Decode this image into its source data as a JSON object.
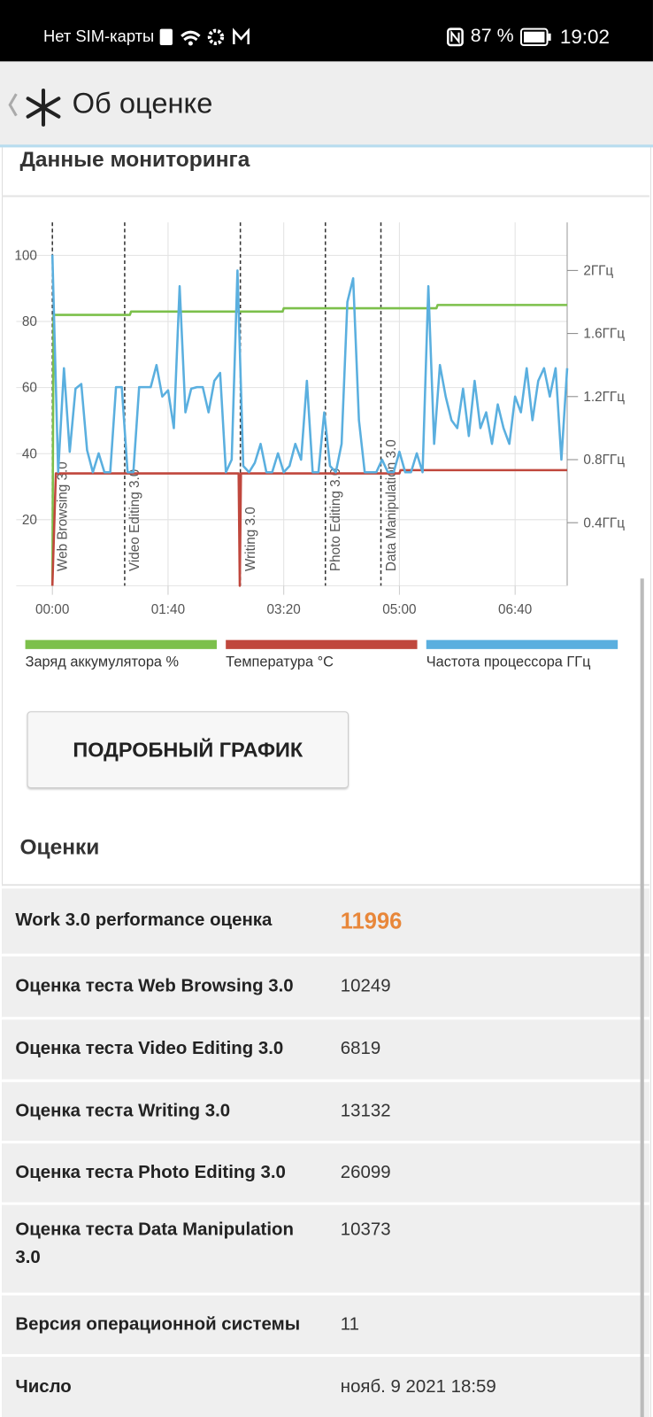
{
  "status_bar": {
    "carrier": "Нет SIM-карты",
    "battery": "87 %",
    "time": "19:02"
  },
  "header": {
    "title": "Об оценке"
  },
  "monitoring": {
    "title": "Данные мониторинга"
  },
  "chart_data": {
    "type": "line",
    "xlim": [
      0,
      445
    ],
    "xticks": [
      {
        "value": 0,
        "label": "00:00"
      },
      {
        "value": 100,
        "label": "01:40"
      },
      {
        "value": 200,
        "label": "03:20"
      },
      {
        "value": 300,
        "label": "05:00"
      },
      {
        "value": 400,
        "label": "06:40"
      }
    ],
    "ylim": [
      0,
      110
    ],
    "yticks": [
      20,
      40,
      60,
      80,
      100
    ],
    "y2lim": [
      0,
      2.305
    ],
    "y2ticks": [
      {
        "value": 0.4,
        "label": "0.4ГГц"
      },
      {
        "value": 0.8,
        "label": "0.8ГГц"
      },
      {
        "value": 1.2,
        "label": "1.2ГГц"
      },
      {
        "value": 1.6,
        "label": "1.6ГГц"
      },
      {
        "value": 2,
        "label": "2ГГц"
      }
    ],
    "grid": true,
    "markers": [
      {
        "x": 0,
        "label": "Web Browsing 3.0"
      },
      {
        "x": 62.5,
        "label": "Video Editing 3.0"
      },
      {
        "x": 162.5,
        "label": "Writing 3.0"
      },
      {
        "x": 236,
        "label": "Photo Editing 3.0"
      },
      {
        "x": 284,
        "label": "Data Manipulation 3.0"
      }
    ],
    "series": [
      {
        "name": "Заряд аккумулятора %",
        "color": "#7cc04b",
        "x": [
          0,
          1,
          67,
          68,
          199,
          200,
          332,
          333,
          445
        ],
        "values": [
          0,
          82,
          82,
          83,
          83,
          84,
          84,
          85,
          85
        ]
      },
      {
        "name": "Температура °C",
        "color": "#c0473d",
        "x": [
          0,
          3,
          161,
          162,
          163,
          300,
          301,
          445
        ],
        "values": [
          0,
          34,
          34,
          0,
          34,
          34,
          35,
          35
        ]
      },
      {
        "name": "Частота процессора ГГц",
        "color": "#5aafdf",
        "axis": "y2",
        "x": [
          0,
          5,
          10,
          15,
          20,
          25,
          30,
          35,
          40,
          45,
          50,
          55,
          60,
          65,
          70,
          75,
          80,
          85,
          90,
          95,
          100,
          105,
          110,
          115,
          120,
          125,
          130,
          135,
          140,
          145,
          150,
          155,
          160,
          165,
          170,
          175,
          180,
          185,
          190,
          195,
          200,
          205,
          210,
          215,
          220,
          225,
          230,
          235,
          240,
          245,
          250,
          255,
          260,
          265,
          270,
          275,
          280,
          285,
          290,
          295,
          300,
          305,
          310,
          315,
          320,
          325,
          330,
          335,
          340,
          345,
          350,
          355,
          360,
          365,
          370,
          375,
          380,
          385,
          390,
          395,
          400,
          405,
          410,
          415,
          420,
          425,
          430,
          435,
          440,
          445
        ],
        "values": [
          2.1,
          0.72,
          1.38,
          0.85,
          1.25,
          1.28,
          0.86,
          0.72,
          0.84,
          0.72,
          0.72,
          1.26,
          1.26,
          0.72,
          0.72,
          1.26,
          1.26,
          1.26,
          1.4,
          1.2,
          1.24,
          1.0,
          1.9,
          1.1,
          1.25,
          1.26,
          1.26,
          1.1,
          1.3,
          1.35,
          0.72,
          0.8,
          2.0,
          0.76,
          0.72,
          0.78,
          0.9,
          0.72,
          0.72,
          0.84,
          0.72,
          0.76,
          0.9,
          0.8,
          1.3,
          0.72,
          0.72,
          1.1,
          0.76,
          0.72,
          0.9,
          1.8,
          1.95,
          1.05,
          0.72,
          0.72,
          0.72,
          0.8,
          0.72,
          0.72,
          0.85,
          0.72,
          0.72,
          0.84,
          0.72,
          1.9,
          0.9,
          1.4,
          1.2,
          1.05,
          1.0,
          1.25,
          0.95,
          1.3,
          1.0,
          1.1,
          0.9,
          1.15,
          1.0,
          0.9,
          1.2,
          1.1,
          1.38,
          1.05,
          1.3,
          1.38,
          1.2,
          1.38,
          0.8,
          1.38
        ]
      }
    ]
  },
  "button": {
    "label": "ПОДРОБНЫЙ ГРАФИК"
  },
  "scores": {
    "title": "Оценки",
    "rows": [
      [
        "Work 3.0 performance оценка",
        "11996"
      ],
      [
        "Оценка теста Web Browsing 3.0",
        "10249"
      ],
      [
        "Оценка теста Video Editing 3.0",
        "6819"
      ],
      [
        "Оценка теста Writing 3.0",
        "13132"
      ],
      [
        "Оценка теста Photo Editing 3.0",
        "26099"
      ],
      [
        "Оценка теста Data Manipulation 3.0",
        "10373"
      ],
      [
        "Версия операционной системы",
        "11"
      ],
      [
        "Число",
        "нояб. 9 2021 18:59"
      ]
    ]
  }
}
